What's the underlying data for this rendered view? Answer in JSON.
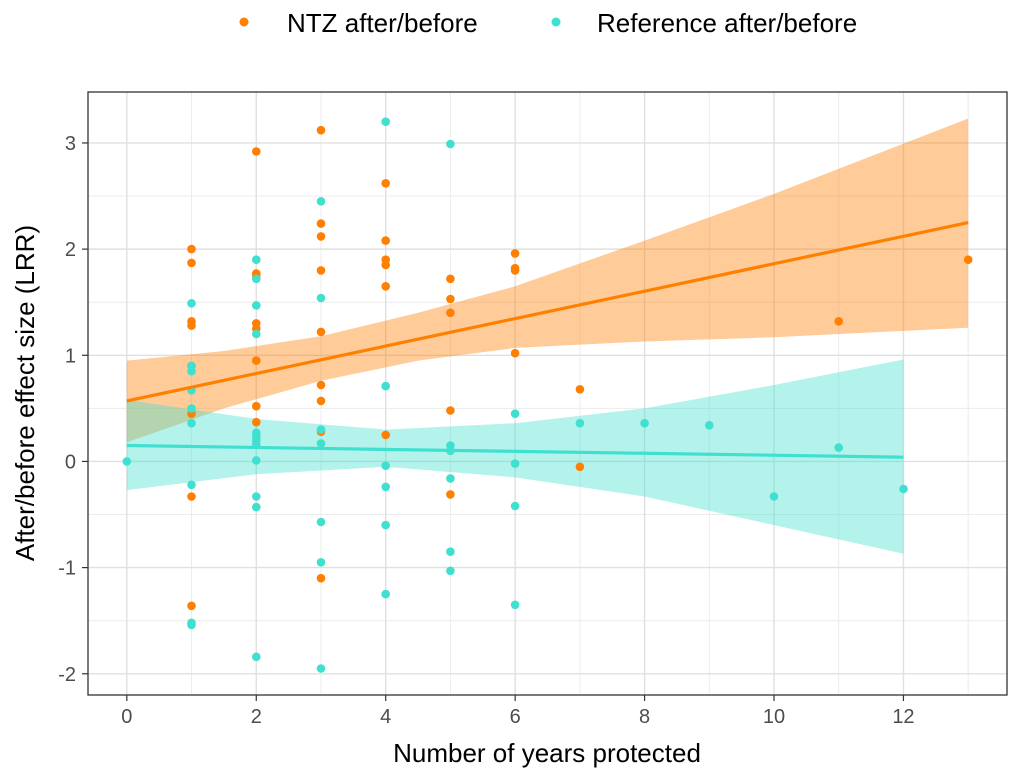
{
  "chart_data": {
    "type": "scatter",
    "title": "",
    "xlabel": "Number of years protected",
    "ylabel": "After/before effect size (LRR)",
    "xlim": [
      -0.6,
      13.6
    ],
    "ylim": [
      -2.2,
      3.48
    ],
    "x_ticks": [
      0,
      2,
      4,
      6,
      8,
      10,
      12
    ],
    "y_ticks": [
      -2,
      -1,
      0,
      1,
      2,
      3
    ],
    "grid": true,
    "legend_position": "top",
    "series": [
      {
        "name": "NTZ after/before",
        "color": "#ff7f00",
        "points": [
          [
            1,
            2.0
          ],
          [
            1,
            1.87
          ],
          [
            1,
            1.32
          ],
          [
            1,
            1.28
          ],
          [
            1,
            0.9
          ],
          [
            1,
            0.45
          ],
          [
            1,
            -0.33
          ],
          [
            1,
            -1.36
          ],
          [
            2,
            2.92
          ],
          [
            2,
            1.77
          ],
          [
            2,
            1.75
          ],
          [
            2,
            1.3
          ],
          [
            2,
            1.25
          ],
          [
            2,
            0.95
          ],
          [
            2,
            0.52
          ],
          [
            2,
            0.37
          ],
          [
            3,
            3.12
          ],
          [
            3,
            2.24
          ],
          [
            3,
            2.12
          ],
          [
            3,
            1.8
          ],
          [
            3,
            1.22
          ],
          [
            3,
            0.72
          ],
          [
            3,
            0.57
          ],
          [
            3,
            0.28
          ],
          [
            3,
            -1.1
          ],
          [
            4,
            2.62
          ],
          [
            4,
            2.08
          ],
          [
            4,
            1.9
          ],
          [
            4,
            1.85
          ],
          [
            4,
            1.65
          ],
          [
            4,
            0.25
          ],
          [
            5,
            1.72
          ],
          [
            5,
            1.53
          ],
          [
            5,
            1.4
          ],
          [
            5,
            0.48
          ],
          [
            5,
            -0.31
          ],
          [
            6,
            1.96
          ],
          [
            6,
            1.82
          ],
          [
            6,
            1.8
          ],
          [
            6,
            1.02
          ],
          [
            7,
            0.68
          ],
          [
            7,
            -0.05
          ],
          [
            11,
            1.32
          ],
          [
            13,
            1.9
          ]
        ],
        "trend": {
          "x": [
            0,
            13
          ],
          "y": [
            0.57,
            2.25
          ]
        },
        "band": {
          "x": [
            0,
            1.5,
            3,
            4.5,
            6,
            8,
            10,
            13
          ],
          "lower": [
            0.18,
            0.5,
            0.76,
            0.95,
            1.07,
            1.13,
            1.17,
            1.26
          ],
          "upper": [
            0.95,
            1.04,
            1.18,
            1.4,
            1.65,
            2.08,
            2.52,
            3.23
          ]
        }
      },
      {
        "name": "Reference after/before",
        "color": "#40e0d0",
        "points": [
          [
            0,
            0.0
          ],
          [
            1,
            1.49
          ],
          [
            1,
            0.9
          ],
          [
            1,
            0.85
          ],
          [
            1,
            0.67
          ],
          [
            1,
            0.5
          ],
          [
            1,
            0.36
          ],
          [
            1,
            -0.22
          ],
          [
            1,
            -1.52
          ],
          [
            1,
            -1.54
          ],
          [
            2,
            1.9
          ],
          [
            2,
            1.72
          ],
          [
            2,
            1.47
          ],
          [
            2,
            1.2
          ],
          [
            2,
            0.27
          ],
          [
            2,
            0.24
          ],
          [
            2,
            0.2
          ],
          [
            2,
            0.16
          ],
          [
            2,
            0.01
          ],
          [
            2,
            -0.33
          ],
          [
            2,
            -0.43
          ],
          [
            2,
            -1.84
          ],
          [
            3,
            2.45
          ],
          [
            3,
            1.54
          ],
          [
            3,
            0.3
          ],
          [
            3,
            0.17
          ],
          [
            3,
            -0.57
          ],
          [
            3,
            -0.95
          ],
          [
            3,
            -1.95
          ],
          [
            4,
            3.2
          ],
          [
            4,
            0.71
          ],
          [
            4,
            -0.04
          ],
          [
            4,
            -0.24
          ],
          [
            4,
            -0.6
          ],
          [
            4,
            -1.25
          ],
          [
            5,
            2.99
          ],
          [
            5,
            0.15
          ],
          [
            5,
            0.1
          ],
          [
            5,
            -0.16
          ],
          [
            5,
            -0.85
          ],
          [
            5,
            -1.03
          ],
          [
            6,
            0.45
          ],
          [
            6,
            -0.02
          ],
          [
            6,
            -0.42
          ],
          [
            6,
            -1.35
          ],
          [
            7,
            0.36
          ],
          [
            8,
            0.36
          ],
          [
            9,
            0.34
          ],
          [
            10,
            -0.33
          ],
          [
            11,
            0.13
          ],
          [
            12,
            -0.26
          ]
        ],
        "trend": {
          "x": [
            0,
            12
          ],
          "y": [
            0.15,
            0.04
          ]
        },
        "band": {
          "x": [
            0,
            2,
            4,
            6,
            8,
            10,
            12
          ],
          "lower": [
            -0.27,
            -0.12,
            -0.05,
            -0.15,
            -0.33,
            -0.6,
            -0.87
          ],
          "upper": [
            0.58,
            0.4,
            0.3,
            0.36,
            0.5,
            0.72,
            0.96
          ]
        }
      }
    ]
  }
}
